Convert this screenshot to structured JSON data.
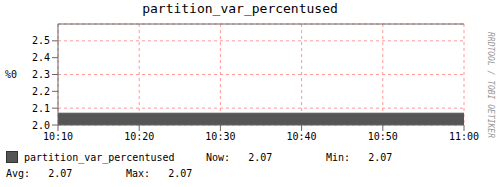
{
  "chart_data": {
    "type": "area",
    "title": "partition_var_percentused",
    "y_label": "%0",
    "x": [
      "10:10",
      "10:20",
      "10:30",
      "10:40",
      "10:50",
      "11:00"
    ],
    "series": [
      {
        "name": "partition_var_percentused",
        "color": "#555555",
        "values": [
          2.07,
          2.07,
          2.07,
          2.07,
          2.07,
          2.07
        ]
      }
    ],
    "ylim": [
      2.0,
      2.6
    ],
    "yticks": [
      {
        "value": 2.0,
        "label": "2.0"
      },
      2.1,
      2.2,
      2.3,
      2.4,
      2.5
    ],
    "grid": true,
    "legend": "bottom",
    "annotations": [
      "Now:   2.07",
      "Min:   2.07",
      "Avg:   2.07",
      "Max:   2.07",
      "RRDTOOL / TOBI OETIKER"
    ]
  }
}
